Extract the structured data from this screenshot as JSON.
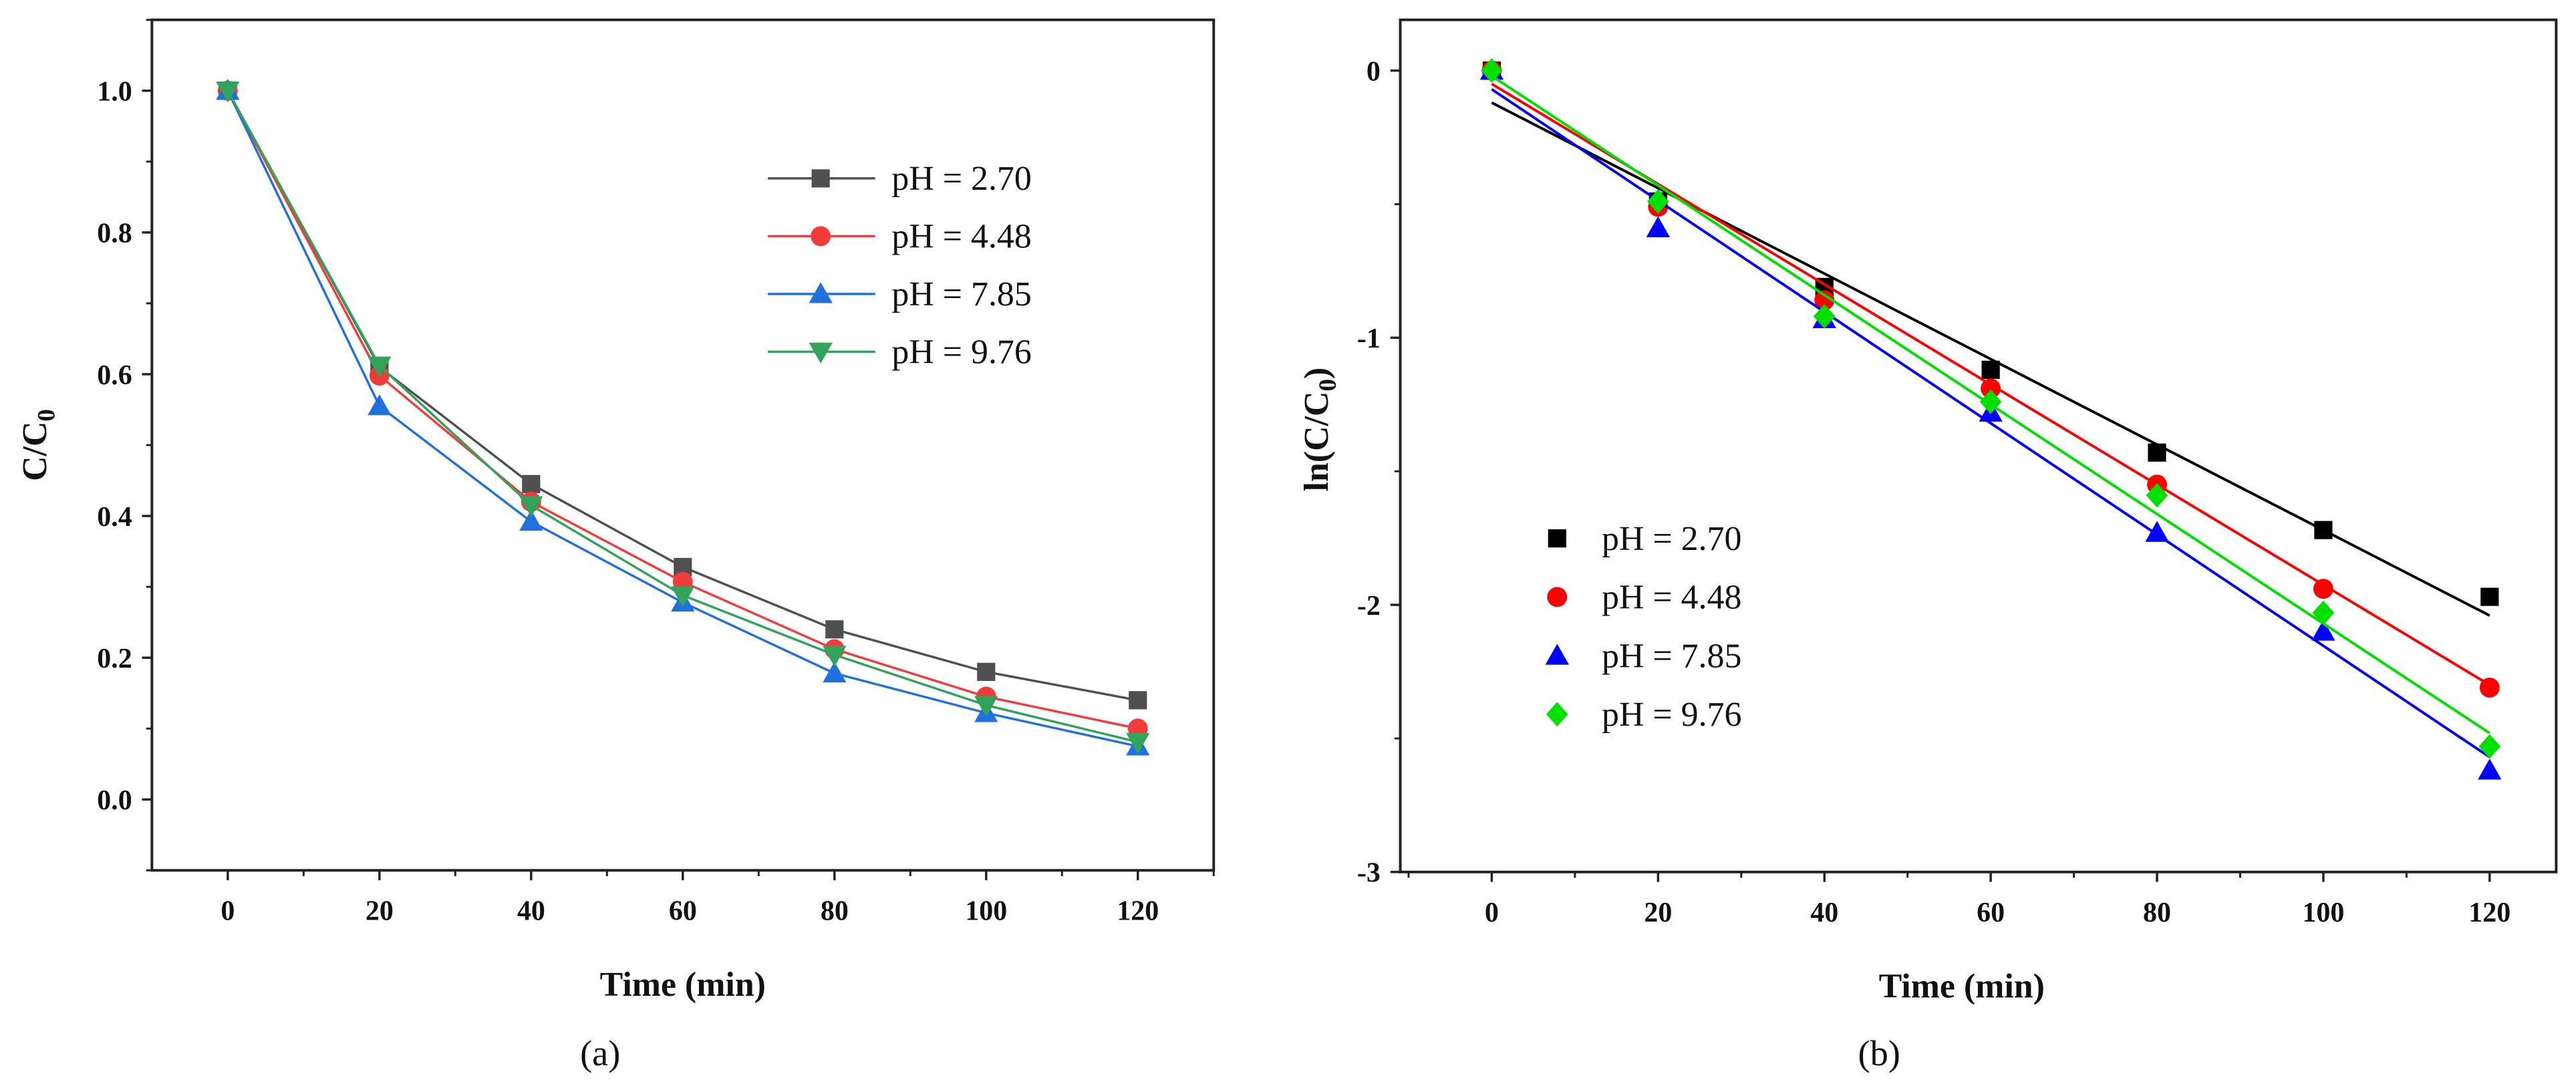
{
  "chart_data": [
    {
      "type": "line",
      "panel_label": "(a)",
      "xlabel": "Time (min)",
      "ylabel_main": "C/C",
      "ylabel_sub": "0",
      "xlim": [
        -10,
        130
      ],
      "ylim": [
        -0.1,
        1.1
      ],
      "xticks": [
        0,
        20,
        40,
        60,
        80,
        100,
        120
      ],
      "xtick_labels": [
        "0",
        "20",
        "40",
        "60",
        "80",
        "100",
        "120"
      ],
      "yticks": [
        0,
        0.2,
        0.4,
        0.6,
        0.8,
        1.0
      ],
      "ytick_labels": [
        "0.0",
        "0.2",
        "0.4",
        "0.6",
        "0.8",
        "1.0"
      ],
      "legend_position": "top-right",
      "x": [
        0,
        20,
        40,
        60,
        80,
        100,
        120
      ],
      "series": [
        {
          "name": "pH = 2.70",
          "marker": "square",
          "color": "#505050",
          "values": [
            1.0,
            0.61,
            0.445,
            0.328,
            0.24,
            0.18,
            0.14
          ]
        },
        {
          "name": "pH = 4.48",
          "marker": "circle",
          "color": "#f23c3c",
          "values": [
            1.0,
            0.598,
            0.42,
            0.307,
            0.212,
            0.145,
            0.1
          ]
        },
        {
          "name": "pH = 7.85",
          "marker": "triangle-up",
          "color": "#2170e0",
          "values": [
            1.0,
            0.555,
            0.392,
            0.278,
            0.178,
            0.122,
            0.075
          ]
        },
        {
          "name": "pH = 9.76",
          "marker": "triangle-down",
          "color": "#31a35a",
          "values": [
            1.0,
            0.612,
            0.415,
            0.288,
            0.204,
            0.133,
            0.081
          ]
        }
      ]
    },
    {
      "type": "scatter",
      "panel_label": "(b)",
      "xlabel": "Time (min)",
      "ylabel_main": "ln(C/C",
      "ylabel_sub": "0",
      "ylabel_end": ")",
      "xlim": [
        -11,
        128
      ],
      "ylim": [
        -3,
        0.19
      ],
      "xticks": [
        0,
        20,
        40,
        60,
        80,
        100,
        120
      ],
      "xtick_labels": [
        "0",
        "20",
        "40",
        "60",
        "80",
        "100",
        "120"
      ],
      "yticks": [
        0,
        -1,
        -2,
        -3
      ],
      "ytick_labels": [
        "0",
        "-1",
        "-2",
        "-3"
      ],
      "legend_position": "center-left",
      "x": [
        0,
        20,
        40,
        60,
        80,
        100,
        120
      ],
      "series": [
        {
          "name": "pH = 2.70",
          "marker": "square",
          "color": "#000000",
          "values": [
            0,
            -0.49,
            -0.81,
            -1.12,
            -1.43,
            -1.72,
            -1.97
          ],
          "fit": [
            -0.12,
            -2.04
          ]
        },
        {
          "name": "pH = 4.48",
          "marker": "circle",
          "color": "#ff0000",
          "values": [
            0,
            -0.51,
            -0.86,
            -1.19,
            -1.55,
            -1.94,
            -2.31
          ],
          "fit": [
            -0.05,
            -2.3
          ]
        },
        {
          "name": "pH = 7.85",
          "marker": "triangle-up",
          "color": "#0000ff",
          "values": [
            0,
            -0.59,
            -0.93,
            -1.28,
            -1.73,
            -2.1,
            -2.62
          ],
          "fit": [
            -0.07,
            -2.57
          ]
        },
        {
          "name": "pH = 9.76",
          "marker": "diamond",
          "color": "#00e000",
          "values": [
            0,
            -0.49,
            -0.92,
            -1.24,
            -1.59,
            -2.03,
            -2.53
          ],
          "fit": [
            -0.02,
            -2.48
          ]
        }
      ]
    }
  ]
}
